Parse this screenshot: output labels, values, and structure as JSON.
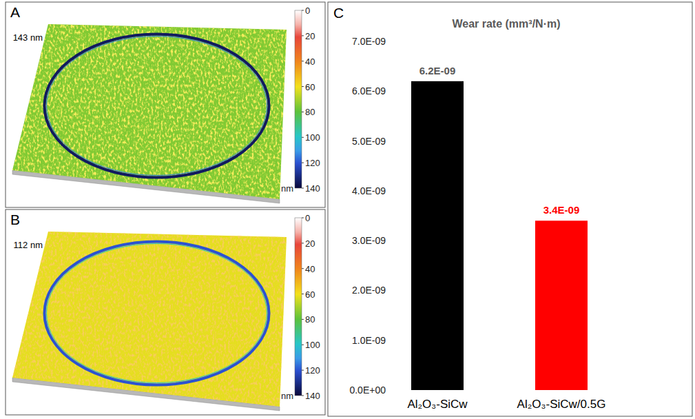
{
  "chart_data": [
    {
      "type": "surface_map",
      "panel_label": "A",
      "annotations": [
        "143 nm"
      ],
      "surface_depth": 75,
      "track_depth": 135,
      "colorbar_range": [
        0,
        140
      ],
      "colorbar_ticks": [
        0,
        20,
        40,
        60,
        80,
        100,
        120,
        140
      ],
      "colorbar_label": "nm"
    },
    {
      "type": "surface_map",
      "panel_label": "B",
      "annotations": [
        "112 nm"
      ],
      "surface_depth": 62,
      "track_depth": 120,
      "colorbar_range": [
        0,
        140
      ],
      "colorbar_ticks": [
        0,
        20,
        40,
        60,
        80,
        100,
        120,
        140
      ],
      "colorbar_label": "nm"
    },
    {
      "type": "bar",
      "panel_label": "C",
      "title": "Wear rate (mm³/N·m)",
      "categories": [
        "Al₂O₃-SiCw",
        "Al₂O₃-SiCw/0.5G"
      ],
      "values": [
        6.2e-09,
        3.4e-09
      ],
      "value_labels": [
        "6.2E-09",
        "3.4E-09"
      ],
      "colors": [
        "#000000",
        "#ff0000"
      ],
      "data_labels": true,
      "grid": false,
      "ylim": [
        0,
        7e-09
      ],
      "yticks": [
        {
          "value": 0,
          "label": "0.0E+00"
        },
        {
          "value": 1e-09,
          "label": "1.0E-09"
        },
        {
          "value": 2e-09,
          "label": "2.0E-09"
        },
        {
          "value": 3e-09,
          "label": "3.0E-09"
        },
        {
          "value": 4e-09,
          "label": "4.0E-09"
        },
        {
          "value": 5e-09,
          "label": "5.0E-09"
        },
        {
          "value": 6e-09,
          "label": "6.0E-09"
        },
        {
          "value": 7e-09,
          "label": "7.0E-09"
        }
      ]
    }
  ]
}
